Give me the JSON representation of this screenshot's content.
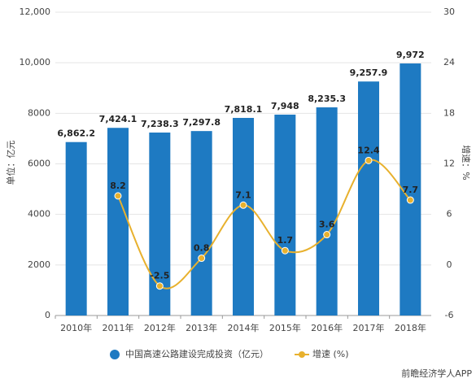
{
  "chart_data": {
    "type": "bar",
    "categories": [
      "2010年",
      "2011年",
      "2012年",
      "2013年",
      "2014年",
      "2015年",
      "2016年",
      "2017年",
      "2018年"
    ],
    "series": [
      {
        "name": "中国高速公路建设完成投资（亿元）",
        "type": "bar",
        "color": "#1e7ac2",
        "values": [
          6862.2,
          7424.1,
          7238.3,
          7297.8,
          7818.1,
          7948,
          8235.3,
          9257.9,
          9972
        ],
        "value_labels": [
          "6,862.2",
          "7,424.1",
          "7,238.3",
          "7,297.8",
          "7,818.1",
          "7,948",
          "8,235.3",
          "9,257.9",
          "9,972"
        ]
      },
      {
        "name": "增速 (%)",
        "type": "line",
        "axis": "y2",
        "color": "#e8b12e",
        "values": [
          null,
          8.2,
          -2.5,
          0.8,
          7.1,
          1.7,
          3.6,
          12.4,
          7.7
        ]
      }
    ],
    "ylabel": "单位：亿元",
    "y2label": "增速：%",
    "ylim": [
      0,
      12000
    ],
    "yticks": [
      0,
      2000,
      4000,
      6000,
      8000,
      {
        "value": 10000,
        "label": "10,000"
      },
      {
        "value": 12000,
        "label": "12,000"
      }
    ],
    "y2lim": [
      -6,
      30
    ],
    "y2ticks": [
      -6,
      0,
      6,
      12,
      18,
      24,
      30
    ],
    "grid": true,
    "legend": "bottom",
    "source": "前瞻经济学人APP"
  }
}
